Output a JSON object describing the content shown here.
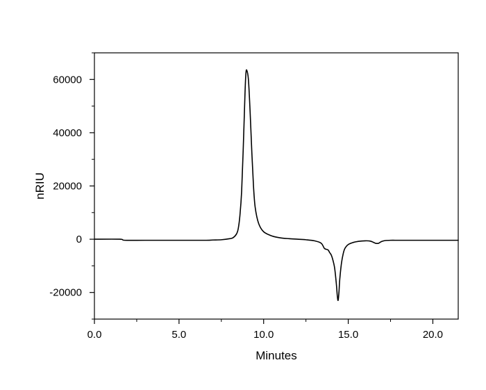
{
  "chart_data": {
    "type": "line",
    "title": "",
    "xlabel": "Minutes",
    "ylabel": "nRIU",
    "xlim": [
      0.0,
      21.5
    ],
    "ylim": [
      -30000,
      70000
    ],
    "x_ticks": [
      0.0,
      5.0,
      10.0,
      15.0,
      20.0
    ],
    "x_tick_labels": [
      "0.0",
      "5.0",
      "10.0",
      "15.0",
      "20.0"
    ],
    "x_minor_step": 2.5,
    "y_ticks": [
      -20000,
      0,
      20000,
      40000,
      60000
    ],
    "y_tick_labels": [
      "-20000",
      "0",
      "20000",
      "40000",
      "60000"
    ],
    "y_minor_step": 10000,
    "grid": false,
    "legend": "none",
    "series": [
      {
        "color": "#000000",
        "x": [
          0.0,
          1.5,
          1.8,
          3.0,
          5.0,
          6.5,
          7.0,
          7.5,
          8.0,
          8.2,
          8.4,
          8.5,
          8.6,
          8.7,
          8.8,
          8.9,
          8.95,
          9.0,
          9.1,
          9.2,
          9.3,
          9.4,
          9.5,
          9.7,
          10.0,
          10.5,
          11.0,
          11.5,
          12.0,
          12.5,
          13.0,
          13.4,
          13.6,
          13.8,
          13.9,
          14.0,
          14.1,
          14.2,
          14.3,
          14.35,
          14.4,
          14.45,
          14.5,
          14.6,
          14.7,
          14.8,
          15.0,
          15.3,
          15.6,
          16.0,
          16.3,
          16.5,
          16.6,
          16.7,
          16.8,
          16.9,
          17.0,
          17.2,
          17.5,
          18.0,
          19.0,
          20.0,
          21.5
        ],
        "y": [
          0,
          0,
          -400,
          -400,
          -400,
          -400,
          -300,
          -200,
          200,
          600,
          2000,
          4000,
          9000,
          18000,
          35000,
          55000,
          62000,
          63500,
          60000,
          48000,
          33000,
          20000,
          12000,
          6000,
          2800,
          1200,
          500,
          200,
          0,
          -200,
          -600,
          -1500,
          -3500,
          -4000,
          -5000,
          -6000,
          -8000,
          -11000,
          -17000,
          -21000,
          -23000,
          -20000,
          -15000,
          -9000,
          -5500,
          -3500,
          -2000,
          -1200,
          -800,
          -600,
          -700,
          -1200,
          -1500,
          -1600,
          -1500,
          -1100,
          -800,
          -500,
          -400,
          -400,
          -400,
          -400,
          -400
        ]
      }
    ]
  }
}
